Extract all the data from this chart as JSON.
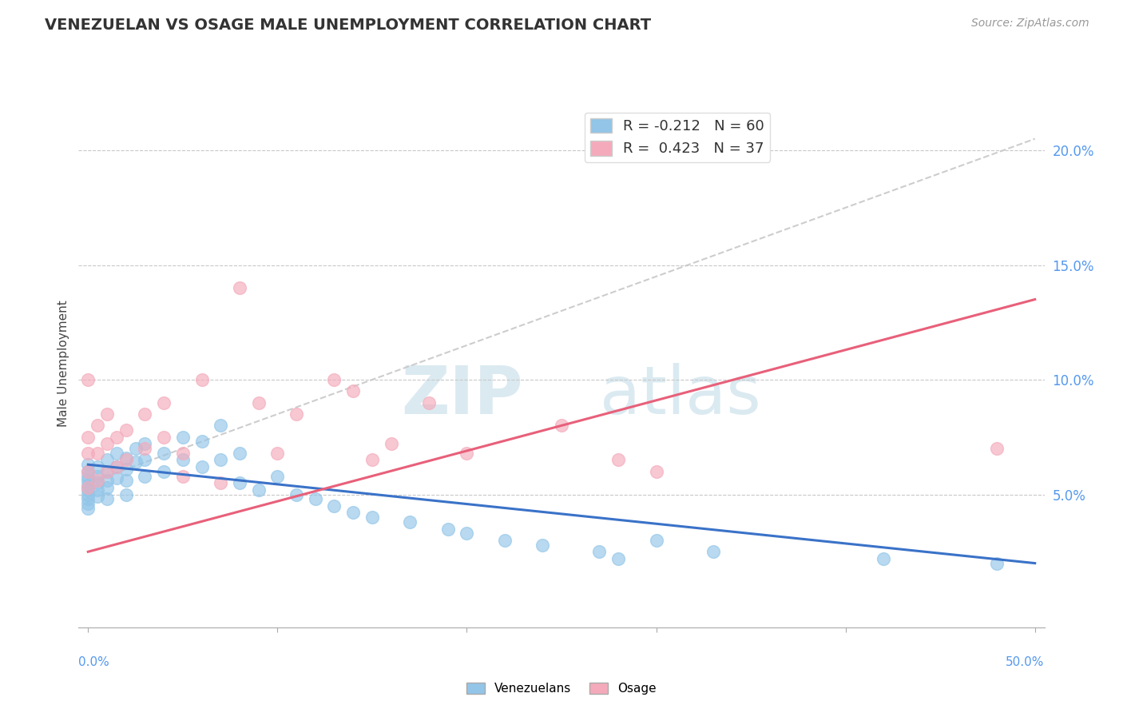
{
  "title": "VENEZUELAN VS OSAGE MALE UNEMPLOYMENT CORRELATION CHART",
  "source_text": "Source: ZipAtlas.com",
  "ylabel": "Male Unemployment",
  "xlim": [
    -0.005,
    0.505
  ],
  "ylim": [
    -0.008,
    0.222
  ],
  "xticks": [
    0.0,
    0.1,
    0.2,
    0.3,
    0.4,
    0.5
  ],
  "yticks_right": [
    0.05,
    0.1,
    0.15,
    0.2
  ],
  "ytick_labels_right": [
    "5.0%",
    "10.0%",
    "15.0%",
    "20.0%"
  ],
  "xtick_labels_outer": [
    "0.0%",
    "50.0%"
  ],
  "venezuelan_color": "#92C5E8",
  "osage_color": "#F4AABB",
  "venezuelan_line_color": "#3A72C8",
  "osage_line_color": "#E8607A",
  "diagonal_line_color": "#C8C8C8",
  "R_venezuelan": -0.212,
  "N_venezuelan": 60,
  "R_osage": 0.423,
  "N_osage": 37,
  "watermark_zip": "ZIP",
  "watermark_atlas": "atlas",
  "background_color": "#ffffff",
  "grid_color": "#C8C8C8",
  "venezuelan_line_endpoints": [
    [
      0.0,
      0.063
    ],
    [
      0.5,
      0.02
    ]
  ],
  "osage_line_endpoints": [
    [
      0.0,
      0.025
    ],
    [
      0.5,
      0.135
    ]
  ],
  "diagonal_line_endpoints": [
    [
      0.0,
      0.055
    ],
    [
      0.5,
      0.205
    ]
  ],
  "venezuelan_scatter": {
    "x": [
      0.0,
      0.0,
      0.0,
      0.0,
      0.0,
      0.0,
      0.0,
      0.0,
      0.0,
      0.0,
      0.005,
      0.005,
      0.005,
      0.005,
      0.005,
      0.01,
      0.01,
      0.01,
      0.01,
      0.01,
      0.015,
      0.015,
      0.015,
      0.02,
      0.02,
      0.02,
      0.02,
      0.025,
      0.025,
      0.03,
      0.03,
      0.03,
      0.04,
      0.04,
      0.05,
      0.05,
      0.06,
      0.06,
      0.07,
      0.07,
      0.08,
      0.08,
      0.09,
      0.1,
      0.11,
      0.12,
      0.13,
      0.14,
      0.15,
      0.17,
      0.19,
      0.2,
      0.22,
      0.24,
      0.27,
      0.28,
      0.3,
      0.33,
      0.42,
      0.48
    ],
    "y": [
      0.063,
      0.06,
      0.058,
      0.056,
      0.054,
      0.052,
      0.05,
      0.048,
      0.046,
      0.044,
      0.062,
      0.058,
      0.055,
      0.052,
      0.049,
      0.065,
      0.06,
      0.056,
      0.053,
      0.048,
      0.068,
      0.062,
      0.057,
      0.066,
      0.061,
      0.056,
      0.05,
      0.07,
      0.064,
      0.072,
      0.065,
      0.058,
      0.068,
      0.06,
      0.075,
      0.065,
      0.073,
      0.062,
      0.08,
      0.065,
      0.068,
      0.055,
      0.052,
      0.058,
      0.05,
      0.048,
      0.045,
      0.042,
      0.04,
      0.038,
      0.035,
      0.033,
      0.03,
      0.028,
      0.025,
      0.022,
      0.03,
      0.025,
      0.022,
      0.02
    ]
  },
  "osage_scatter": {
    "x": [
      0.0,
      0.0,
      0.0,
      0.0,
      0.0,
      0.005,
      0.005,
      0.005,
      0.01,
      0.01,
      0.01,
      0.015,
      0.015,
      0.02,
      0.02,
      0.03,
      0.03,
      0.04,
      0.04,
      0.05,
      0.05,
      0.06,
      0.07,
      0.08,
      0.09,
      0.1,
      0.11,
      0.13,
      0.14,
      0.15,
      0.16,
      0.18,
      0.2,
      0.25,
      0.28,
      0.3,
      0.48
    ],
    "y": [
      0.1,
      0.075,
      0.068,
      0.06,
      0.053,
      0.08,
      0.068,
      0.056,
      0.085,
      0.072,
      0.06,
      0.075,
      0.062,
      0.078,
      0.065,
      0.085,
      0.07,
      0.09,
      0.075,
      0.068,
      0.058,
      0.1,
      0.055,
      0.14,
      0.09,
      0.068,
      0.085,
      0.1,
      0.095,
      0.065,
      0.072,
      0.09,
      0.068,
      0.08,
      0.065,
      0.06,
      0.07
    ]
  }
}
